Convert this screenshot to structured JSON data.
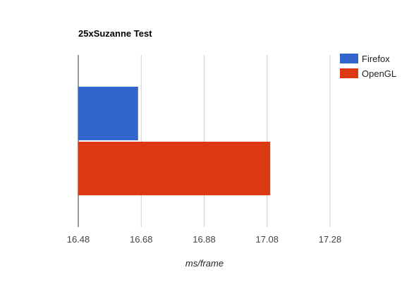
{
  "chart_data": {
    "type": "bar",
    "orientation": "horizontal",
    "title": "25xSuzanne Test",
    "xlabel": "ms/frame",
    "ylabel": "",
    "categories": [
      ""
    ],
    "series": [
      {
        "name": "Firefox",
        "values": [
          16.67
        ],
        "color": "#3366cc"
      },
      {
        "name": "OpenGL",
        "values": [
          17.09
        ],
        "color": "#dc3912"
      }
    ],
    "xlim": [
      16.48,
      17.28
    ],
    "xticks": [
      "16.48",
      "16.68",
      "16.88",
      "17.08",
      "17.28"
    ],
    "grid": true,
    "legend_position": "right"
  }
}
